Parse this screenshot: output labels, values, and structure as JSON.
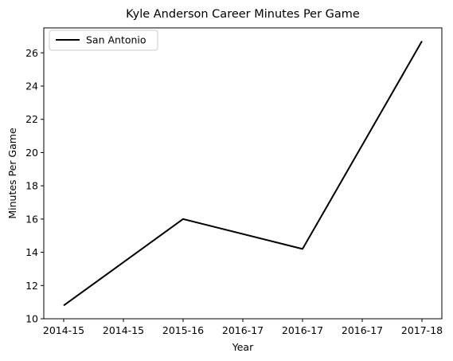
{
  "chart_data": {
    "type": "line",
    "title": "Kyle Anderson  Career Minutes Per Game",
    "xlabel": "Year",
    "ylabel": "Minutes Per Game",
    "x_tick_labels": [
      "2014-15",
      "2014-15",
      "2015-16",
      "2016-17",
      "2016-17",
      "2016-17",
      "2017-18"
    ],
    "y_ticks": [
      10,
      12,
      14,
      16,
      18,
      20,
      22,
      24,
      26
    ],
    "ylim": [
      10,
      27.5
    ],
    "grid": false,
    "legend_position": "upper-left",
    "series": [
      {
        "name": "San Antonio",
        "color": "#000000",
        "points": [
          {
            "x_index": 0,
            "y": 10.8
          },
          {
            "x_index": 2,
            "y": 16.0
          },
          {
            "x_index": 4,
            "y": 14.2
          },
          {
            "x_index": 6,
            "y": 26.7
          }
        ]
      }
    ]
  }
}
